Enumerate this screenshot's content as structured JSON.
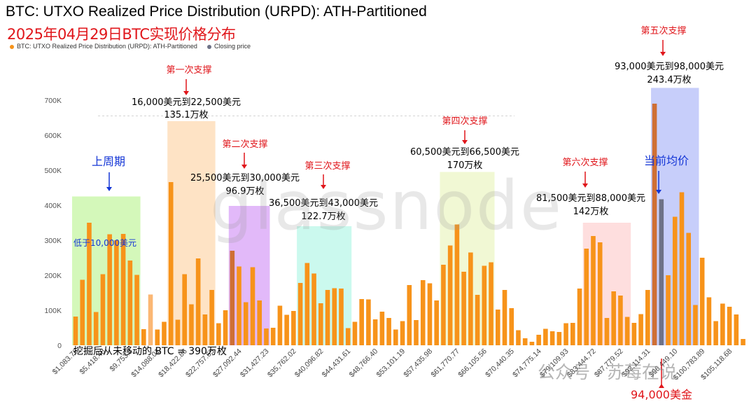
{
  "title": "BTC: UTXO Realized Price Distribution (URPD): ATH-Partitioned",
  "subtitle": "2025年04月29日BTC实现价格分布",
  "legend": [
    {
      "label": "BTC: UTXO Realized Price Distribution (URPD): ATH-Partitioned",
      "color": "#f7931a"
    },
    {
      "label": "Closing price",
      "color": "#6e7287"
    }
  ],
  "watermark": "glassnode",
  "footer_note": "挖掘后从未移动的 BTC = 390万枚",
  "wechat_watermark": "公众号 · 苏莓在说",
  "chart_data": {
    "type": "bar",
    "title": "BTC: UTXO Realized Price Distribution (URPD): ATH-Partitioned",
    "y_ticks": [
      "0",
      "100K",
      "200K",
      "300K",
      "400K",
      "500K",
      "600K",
      "700K"
    ],
    "ylim": [
      0,
      760000
    ],
    "grid": "dashed horizontal, partial",
    "x_tick_labels": [
      "$1,083.76",
      "$5,418.48",
      "$9,753.2",
      "$14,088.01",
      "$18,422.86",
      "$22,757.65",
      "$27,092.44",
      "$31,427.23",
      "$35,762.02",
      "$40,096.82",
      "$44,431.61",
      "$48,766.40",
      "$53,101.19",
      "$57,435.98",
      "$61,770.77",
      "$66,105.56",
      "$70,440.35",
      "$74,775.14",
      "$79,109.93",
      "$83,444.72",
      "$87,779.52",
      "$92,114.31",
      "$96,449.10",
      "$100,783.89",
      "$105,118.68"
    ],
    "values": [
      82000,
      187000,
      350000,
      95000,
      203000,
      317000,
      300000,
      318000,
      242000,
      201000,
      46000,
      145000,
      45000,
      67000,
      466000,
      73000,
      203000,
      117000,
      248000,
      88000,
      158000,
      63000,
      100000,
      270000,
      225000,
      123000,
      223000,
      128000,
      48000,
      50000,
      113000,
      87000,
      98000,
      178000,
      235000,
      205000,
      120000,
      158000,
      163000,
      162000,
      49000,
      67000,
      132000,
      131000,
      74000,
      96000,
      78000,
      45000,
      69000,
      172000,
      72000,
      186000,
      177000,
      128000,
      230000,
      285000,
      345000,
      210000,
      265000,
      144000,
      227000,
      237000,
      102000,
      158000,
      106000,
      43000,
      20000,
      10000,
      30000,
      47000,
      40000,
      38000,
      63000,
      64000,
      162000,
      276000,
      312000,
      294000,
      78000,
      154000,
      142000,
      81000,
      64000,
      89000,
      158000,
      690000,
      417000,
      200000,
      367000,
      437000,
      321000,
      115000,
      250000,
      137000,
      69000,
      119000,
      110000,
      88000,
      18000
    ],
    "bar_colors": {
      "default": "#f7931a",
      "highlight": "#cf6f34",
      "closing": "#6e7287",
      "light": "#fbb774"
    },
    "closing_price_index": 86,
    "highlight_indices": [
      23,
      85
    ],
    "light_indices": [
      11
    ],
    "support_zones": [
      {
        "label": "上周期",
        "range": "低于10,000美元",
        "from": 0,
        "to": 9,
        "top": 425000,
        "color": "#c5f5a3"
      },
      {
        "label": "第一次支撑",
        "range": "16,000美元到22,500美元",
        "amount": "135.1万枚",
        "from": 14,
        "to": 20,
        "top": 640000,
        "color": "#fddab1"
      },
      {
        "label": "第二次支撑",
        "range": "25,500美元到30,000美元",
        "amount": "96.9万枚",
        "from": 23,
        "to": 28,
        "top": 398000,
        "color": "#d8a2f7"
      },
      {
        "label": "第三次支撑",
        "range": "36,500美元到43,000美元",
        "amount": "122.7万枚",
        "from": 33,
        "to": 40,
        "top": 340000,
        "color": "#b9f7e8"
      },
      {
        "label": "第四次支撑",
        "range": "60,500美元到66,500美元",
        "amount": "170万枚",
        "from": 54,
        "to": 61,
        "top": 495000,
        "color": "#ecf5c6"
      },
      {
        "label": "第六次支撑",
        "range": "81,500美元到88,000美元",
        "amount": "142万枚",
        "from": 75,
        "to": 81,
        "top": 350000,
        "color": "#fdd3d3"
      },
      {
        "label": "第五次支撑",
        "range": "93,000美元到98,000美元",
        "amount": "243.4万枚",
        "from": 85,
        "to": 91,
        "top": 735000,
        "color": "#b4bdf8"
      }
    ],
    "current_avg_label": "当前均价",
    "price_marker_label": "94,000美金"
  }
}
